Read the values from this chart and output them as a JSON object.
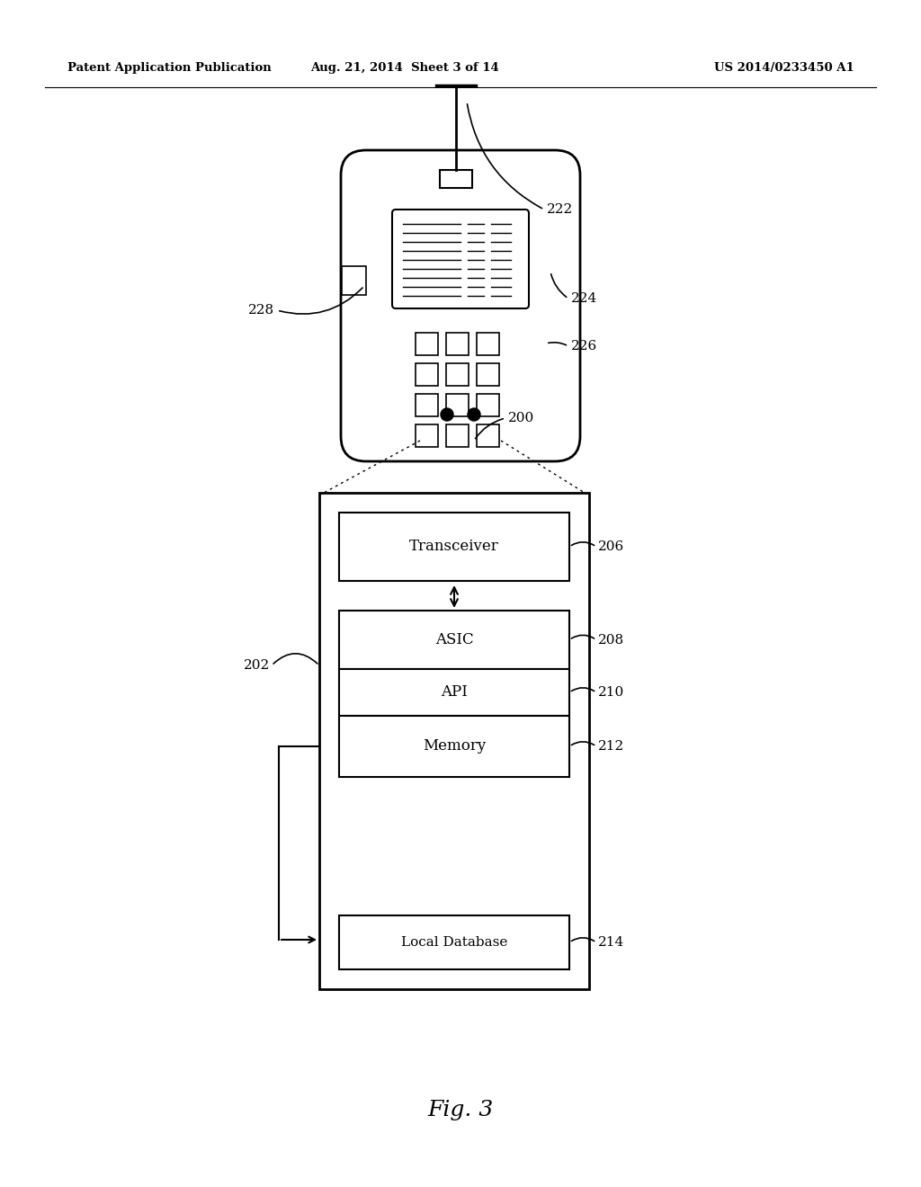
{
  "header_left": "Patent Application Publication",
  "header_mid": "Aug. 21, 2014  Sheet 3 of 14",
  "header_right": "US 2014/0233450 A1",
  "fig_label": "Fig. 3",
  "bg_color": "#ffffff",
  "line_color": "#000000",
  "fig_width": 10.24,
  "fig_height": 13.2,
  "dpi": 100
}
